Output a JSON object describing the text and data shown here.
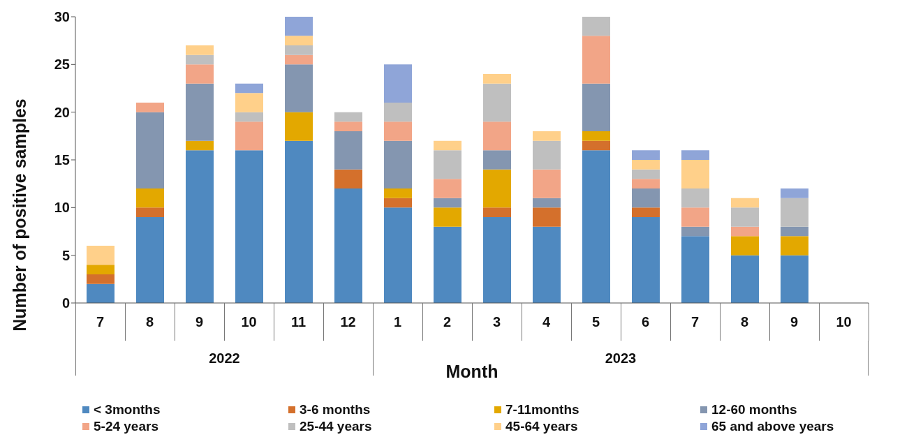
{
  "chart_data": {
    "type": "bar",
    "stacked": true,
    "xlabel": "Month",
    "ylabel": "Number of positive samples",
    "categories": [
      "7",
      "8",
      "9",
      "10",
      "11",
      "12",
      "1",
      "2",
      "3",
      "4",
      "5",
      "6",
      "7",
      "8",
      "9",
      "10"
    ],
    "annotations": [
      "2022",
      "2023"
    ],
    "ylim": [
      0,
      30
    ],
    "yticks": [
      0,
      5,
      10,
      15,
      20,
      25,
      30
    ],
    "grid": false,
    "legend": "bottom",
    "series": [
      {
        "name": "< 3months",
        "color": "#4f89c0",
        "values": [
          2,
          9,
          16,
          16,
          17,
          12,
          10,
          8,
          9,
          8,
          16,
          9,
          7,
          5,
          5,
          null
        ]
      },
      {
        "name": "3-6 months",
        "color": "#d4702c",
        "values": [
          1,
          1,
          0,
          0,
          0,
          2,
          1,
          0,
          1,
          2,
          1,
          1,
          0,
          0,
          0,
          null
        ]
      },
      {
        "name": "7-11months",
        "color": "#e3a800",
        "values": [
          1,
          2,
          1,
          0,
          3,
          0,
          1,
          2,
          4,
          0,
          1,
          0,
          0,
          2,
          2,
          null
        ]
      },
      {
        "name": "12-60 months",
        "color": "#8496b0",
        "values": [
          0,
          8,
          6,
          0,
          5,
          4,
          5,
          1,
          2,
          1,
          5,
          2,
          1,
          0,
          1,
          null
        ]
      },
      {
        "name": "5-24 years",
        "color": "#f2a587",
        "values": [
          0,
          1,
          2,
          3,
          1,
          1,
          2,
          2,
          3,
          3,
          5,
          1,
          2,
          1,
          0,
          null
        ]
      },
      {
        "name": "25-44 years",
        "color": "#bfbfbf",
        "values": [
          0,
          0,
          1,
          1,
          1,
          1,
          2,
          3,
          4,
          3,
          2,
          1,
          2,
          2,
          3,
          null
        ]
      },
      {
        "name": "45-64 years",
        "color": "#ffd08a",
        "values": [
          2,
          0,
          1,
          2,
          1,
          0,
          0,
          1,
          1,
          1,
          0,
          1,
          3,
          1,
          0,
          null
        ]
      },
      {
        "name": "65 and above years",
        "color": "#8fa5d8",
        "values": [
          0,
          0,
          0,
          1,
          2,
          0,
          4,
          0,
          0,
          0,
          0,
          1,
          1,
          0,
          1,
          null
        ]
      }
    ]
  }
}
